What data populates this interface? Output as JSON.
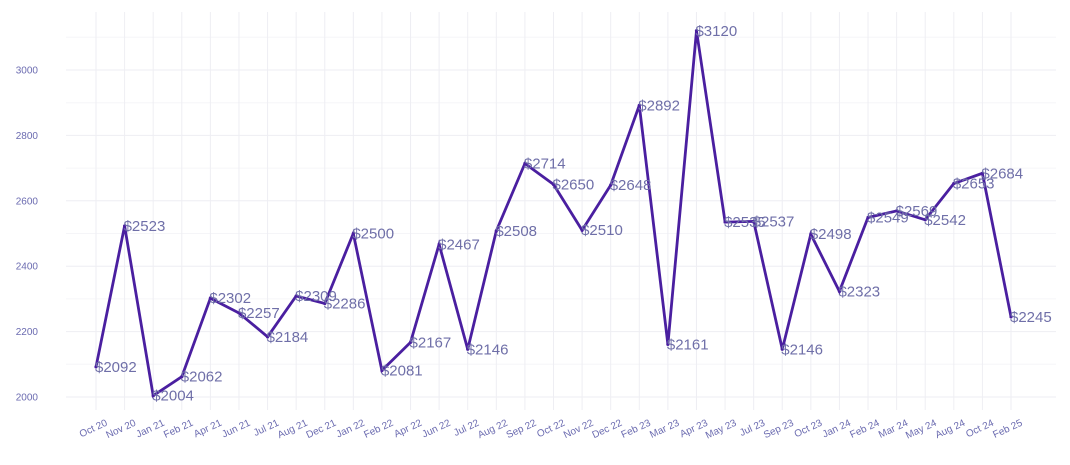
{
  "chart_data": {
    "type": "line",
    "title": "",
    "xlabel": "",
    "ylabel": "",
    "ylim": [
      1960,
      3170
    ],
    "yticks": [
      2000,
      2200,
      2400,
      2600,
      2800,
      3000
    ],
    "grid": true,
    "legend": "none",
    "colors": {
      "line": "#4a1fa0",
      "label": "#6f6fa8",
      "tick": "#6b6bb0",
      "grid": "#eeeef3"
    },
    "tick_labels": [
      "Oct 20",
      "Nov 20",
      "Jan 21",
      "Feb 21",
      "Apr 21",
      "Jun 21",
      "Jul 21",
      "Aug 21",
      "Dec 21",
      "Jan 22",
      "Feb 22",
      "Apr 22",
      "Jun 22",
      "Jul 22",
      "Aug 22",
      "Sep 22",
      "Oct 22",
      "Nov 22",
      "Dec 22",
      "Feb 23",
      "Mar 23",
      "Apr 23",
      "May 23",
      "Jul 23",
      "Sep 23",
      "Oct 23",
      "Jan 24",
      "Feb 24",
      "Mar 24",
      "May 24",
      "Aug 24",
      "Oct 24",
      "Feb 25"
    ],
    "points": [
      {
        "x": 0,
        "y": 2092,
        "label": "$2092"
      },
      {
        "x": 1,
        "y": 2523,
        "label": "$2523"
      },
      {
        "x": 2,
        "y": 2004,
        "label": "$2004"
      },
      {
        "x": 3,
        "y": 2062,
        "label": "$2062"
      },
      {
        "x": 4,
        "y": 2302,
        "label": "$2302"
      },
      {
        "x": 5,
        "y": 2257,
        "label": "$2257"
      },
      {
        "x": 6,
        "y": 2184,
        "label": "$2184"
      },
      {
        "x": 7,
        "y": 2309,
        "label": "$2309"
      },
      {
        "x": 8,
        "y": 2286,
        "label": "$2286"
      },
      {
        "x": 9,
        "y": 2500,
        "label": "$2500"
      },
      {
        "x": 10,
        "y": 2081,
        "label": "$2081"
      },
      {
        "x": 11,
        "y": 2167,
        "label": "$2167"
      },
      {
        "x": 12,
        "y": 2467,
        "label": "$2467"
      },
      {
        "x": 13,
        "y": 2146,
        "label": "$2146"
      },
      {
        "x": 14,
        "y": 2508,
        "label": "$2508"
      },
      {
        "x": 15,
        "y": 2714,
        "label": "$2714"
      },
      {
        "x": 16,
        "y": 2650,
        "label": "$2650"
      },
      {
        "x": 17,
        "y": 2510,
        "label": "$2510"
      },
      {
        "x": 18,
        "y": 2648,
        "label": "$2648"
      },
      {
        "x": 19,
        "y": 2892,
        "label": "$2892"
      },
      {
        "x": 20,
        "y": 2161,
        "label": "$2161"
      },
      {
        "x": 21,
        "y": 3120,
        "label": "$3120"
      },
      {
        "x": 22,
        "y": 2535,
        "label": "$2535"
      },
      {
        "x": 23,
        "y": 2537,
        "label": "$2537"
      },
      {
        "x": 24,
        "y": 2146,
        "label": "$2146"
      },
      {
        "x": 25,
        "y": 2498,
        "label": "$2498"
      },
      {
        "x": 26,
        "y": 2323,
        "label": "$2323"
      },
      {
        "x": 27,
        "y": 2549,
        "label": "$2549"
      },
      {
        "x": 28,
        "y": 2569,
        "label": "$2569"
      },
      {
        "x": 29,
        "y": 2542,
        "label": "$2542"
      },
      {
        "x": 30,
        "y": 2653,
        "label": "$2653"
      },
      {
        "x": 31,
        "y": 2684,
        "label": "$2684"
      },
      {
        "x": 32,
        "y": 2245,
        "label": "$2245"
      }
    ]
  }
}
